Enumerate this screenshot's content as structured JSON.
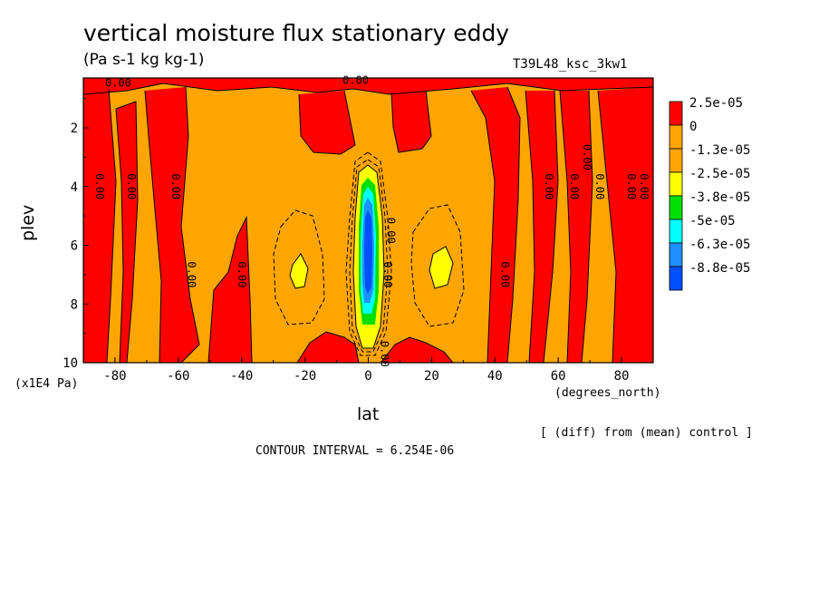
{
  "title": "vertical moisture flux stationary eddy",
  "subtitle": "(Pa s-1 kg kg-1)",
  "run_name": "T39L48_ksc_3kw1",
  "x_units": "(degrees_north)",
  "y_units": "(x1E4 Pa)",
  "x_label": "lat",
  "y_label": "plev",
  "diff_note": "[ (diff) from (mean) control ]",
  "contour_interval": "CONTOUR INTERVAL = 6.254E-06",
  "chart_data": {
    "type": "heatmap",
    "xlabel": "lat",
    "ylabel": "plev",
    "xlim": [
      -90,
      90
    ],
    "ylim": [
      10,
      0.3
    ],
    "x_ticks": [
      {
        "value": -80,
        "label": "-80"
      },
      {
        "value": -60,
        "label": "-60"
      },
      {
        "value": -40,
        "label": "-40"
      },
      {
        "value": -20,
        "label": "-20"
      },
      {
        "value": 0,
        "label": "0"
      },
      {
        "value": 20,
        "label": "20"
      },
      {
        "value": 40,
        "label": "40"
      },
      {
        "value": 60,
        "label": "60"
      },
      {
        "value": 80,
        "label": "80"
      }
    ],
    "y_ticks": [
      {
        "value": 2,
        "label": "2"
      },
      {
        "value": 4,
        "label": "4"
      },
      {
        "value": 6,
        "label": "6"
      },
      {
        "value": 8,
        "label": "8"
      },
      {
        "value": 10,
        "label": "10"
      }
    ],
    "colorbar": [
      {
        "label": "2.5e-05",
        "color": "#ff0000"
      },
      {
        "label": "0",
        "color": "#ffa500"
      },
      {
        "label": "-1.3e-05",
        "color": "#ffa500"
      },
      {
        "label": "-2.5e-05",
        "color": "#ffff00"
      },
      {
        "label": "-3.8e-05",
        "color": "#00e000"
      },
      {
        "label": "-5e-05",
        "color": "#00ffff"
      },
      {
        "label": "-6.3e-05",
        "color": "#1e90ff"
      },
      {
        "label": "-8.8e-05",
        "color": "#0050ff"
      }
    ],
    "contour_labels": [
      {
        "text": "0.00",
        "x": -79,
        "y": 0.6
      },
      {
        "text": "0.00",
        "x": -4,
        "y": 0.5
      },
      {
        "text": "0.00",
        "x": -86,
        "y": 4
      },
      {
        "text": "0.00",
        "x": -76,
        "y": 4
      },
      {
        "text": "0.00",
        "x": -62,
        "y": 4
      },
      {
        "text": "0.00",
        "x": -57,
        "y": 7
      },
      {
        "text": "0.00",
        "x": -41,
        "y": 7
      },
      {
        "text": "0.00",
        "x": 6,
        "y": 5.5
      },
      {
        "text": "0.00",
        "x": 5,
        "y": 7
      },
      {
        "text": "0.00",
        "x": 4,
        "y": 9.7
      },
      {
        "text": "0.00",
        "x": 42,
        "y": 7
      },
      {
        "text": "0.00",
        "x": 56,
        "y": 4
      },
      {
        "text": "0.00",
        "x": 64,
        "y": 4
      },
      {
        "text": "0.00",
        "x": 68,
        "y": 3
      },
      {
        "text": "0.00",
        "x": 72,
        "y": 4
      },
      {
        "text": "0.00",
        "x": 82,
        "y": 4
      },
      {
        "text": "0.00",
        "x": 86,
        "y": 4
      }
    ]
  }
}
